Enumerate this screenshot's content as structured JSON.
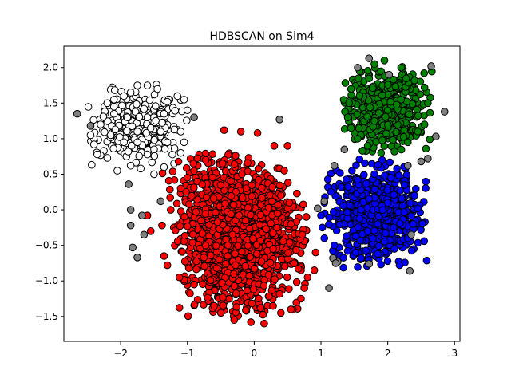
{
  "chart_data": {
    "type": "scatter",
    "title": "HDBSCAN on Sim4",
    "xlabel": "",
    "ylabel": "",
    "xlim": [
      -2.85,
      3.08
    ],
    "ylim": [
      -1.85,
      2.3
    ],
    "x_ticks": [
      -2,
      -1,
      0,
      1,
      2,
      3
    ],
    "x_tick_labels": [
      "−2",
      "−1",
      "0",
      "1",
      "2",
      "3"
    ],
    "y_ticks": [
      -1.5,
      -1.0,
      -0.5,
      0.0,
      0.5,
      1.0,
      1.5,
      2.0
    ],
    "y_tick_labels": [
      "−1.5",
      "−1.0",
      "−0.5",
      "0.0",
      "0.5",
      "1.0",
      "1.5",
      "2.0"
    ],
    "grid": false,
    "legend": "none",
    "marker_edge_color": "#000000",
    "series": [
      {
        "color": "#ffffff",
        "cluster": {
          "center": [
            -1.75,
            1.18
          ],
          "spread": [
            0.32,
            0.25
          ],
          "count": 260
        },
        "points": [
          [
            -2.1,
            1.35
          ],
          [
            -2.3,
            1.2
          ],
          [
            -2.45,
            1.05
          ],
          [
            -2.4,
            0.92
          ],
          [
            -2.35,
            0.78
          ],
          [
            -2.2,
            0.73
          ],
          [
            -2.05,
            0.55
          ],
          [
            -1.85,
            0.62
          ],
          [
            -1.7,
            0.58
          ],
          [
            -1.5,
            0.5
          ],
          [
            -1.35,
            0.6
          ],
          [
            -1.2,
            0.65
          ],
          [
            -1.1,
            0.8
          ],
          [
            -1.05,
            0.95
          ],
          [
            -1.1,
            1.1
          ],
          [
            -1.0,
            1.4
          ],
          [
            -1.05,
            1.55
          ],
          [
            -1.15,
            1.6
          ],
          [
            -1.3,
            1.52
          ],
          [
            -1.45,
            1.7
          ],
          [
            -1.6,
            1.75
          ],
          [
            -1.75,
            1.75
          ],
          [
            -1.85,
            1.65
          ],
          [
            -1.95,
            1.6
          ],
          [
            -2.1,
            1.55
          ],
          [
            -2.2,
            1.5
          ],
          [
            -2.1,
            1.45
          ],
          [
            -1.65,
            1.42
          ],
          [
            -1.35,
            1.35
          ],
          [
            -1.6,
            1.3
          ],
          [
            -1.9,
            1.3
          ],
          [
            -1.75,
            1.1
          ],
          [
            -1.55,
            1.15
          ],
          [
            -1.4,
            1.1
          ],
          [
            -1.3,
            0.95
          ],
          [
            -1.5,
            0.85
          ],
          [
            -1.75,
            0.95
          ],
          [
            -1.95,
            0.95
          ],
          [
            -2.15,
            1.05
          ],
          [
            -1.6,
            0.78
          ]
        ]
      },
      {
        "color": "#ff0000",
        "cluster": {
          "center": [
            -0.2,
            -0.35
          ],
          "spread": [
            0.42,
            0.48
          ],
          "count": 1600
        },
        "points": [
          [
            -0.45,
            1.12
          ],
          [
            -0.2,
            1.1
          ],
          [
            0.05,
            1.08
          ],
          [
            0.3,
            0.9
          ],
          [
            0.38,
            0.58
          ],
          [
            -1.1,
            0.3
          ],
          [
            -1.25,
            0.0
          ],
          [
            -1.38,
            -0.22
          ],
          [
            -1.55,
            -0.3
          ],
          [
            -1.6,
            -0.08
          ],
          [
            -1.35,
            -0.65
          ],
          [
            -1.3,
            -0.78
          ],
          [
            -1.12,
            -0.95
          ],
          [
            -0.9,
            -1.05
          ],
          [
            -0.6,
            -1.35
          ],
          [
            -0.5,
            -1.45
          ],
          [
            -0.3,
            -1.55
          ],
          [
            -0.05,
            -1.58
          ],
          [
            0.15,
            -1.6
          ],
          [
            0.4,
            -1.45
          ],
          [
            0.55,
            -1.4
          ],
          [
            0.7,
            -1.25
          ],
          [
            0.75,
            -1.1
          ],
          [
            0.8,
            -0.95
          ],
          [
            0.9,
            -0.85
          ],
          [
            0.92,
            -0.6
          ],
          [
            0.72,
            -0.35
          ],
          [
            0.55,
            -0.2
          ],
          [
            0.35,
            -0.05
          ],
          [
            0.4,
            0.2
          ],
          [
            0.45,
            0.55
          ],
          [
            0.5,
            0.9
          ]
        ]
      },
      {
        "color": "#0000ff",
        "cluster": {
          "center": [
            1.82,
            -0.05
          ],
          "spread": [
            0.32,
            0.32
          ],
          "count": 700
        },
        "points": [
          [
            1.3,
            0.32
          ],
          [
            1.55,
            0.42
          ],
          [
            1.8,
            0.5
          ],
          [
            2.05,
            0.45
          ],
          [
            2.25,
            0.35
          ],
          [
            2.4,
            0.2
          ],
          [
            2.45,
            0.02
          ],
          [
            2.38,
            -0.2
          ],
          [
            2.3,
            -0.4
          ],
          [
            2.1,
            -0.55
          ],
          [
            1.85,
            -0.62
          ],
          [
            1.6,
            -0.68
          ],
          [
            1.4,
            -0.58
          ],
          [
            1.2,
            -0.5
          ],
          [
            1.05,
            -0.4
          ],
          [
            1.02,
            -0.25
          ],
          [
            1.0,
            -0.08
          ],
          [
            1.05,
            0.1
          ],
          [
            1.15,
            0.25
          ],
          [
            1.6,
            0.0
          ],
          [
            2.0,
            0.1
          ],
          [
            1.7,
            -0.3
          ]
        ]
      },
      {
        "color": "#008000",
        "cluster": {
          "center": [
            2.0,
            1.42
          ],
          "spread": [
            0.28,
            0.25
          ],
          "count": 500
        },
        "points": [
          [
            1.58,
            1.95
          ],
          [
            1.8,
            2.05
          ],
          [
            1.95,
            2.1
          ],
          [
            2.2,
            2.0
          ],
          [
            2.4,
            1.82
          ],
          [
            2.55,
            1.72
          ],
          [
            2.6,
            1.5
          ],
          [
            2.55,
            1.2
          ],
          [
            2.45,
            1.1
          ],
          [
            2.3,
            0.95
          ],
          [
            2.1,
            0.82
          ],
          [
            1.9,
            0.8
          ],
          [
            1.7,
            0.9
          ],
          [
            1.55,
            1.0
          ],
          [
            1.45,
            1.15
          ],
          [
            1.4,
            1.3
          ],
          [
            1.42,
            1.5
          ],
          [
            1.45,
            1.7
          ],
          [
            2.0,
            1.4
          ],
          [
            2.2,
            1.55
          ],
          [
            1.8,
            1.25
          ]
        ]
      },
      {
        "color": "#808080",
        "cluster": {
          "center": [
            0,
            0
          ],
          "spread": [
            0,
            0
          ],
          "count": 0
        },
        "points": [
          [
            -2.65,
            1.35
          ],
          [
            -2.45,
            1.18
          ],
          [
            -1.88,
            0.36
          ],
          [
            -0.9,
            1.3
          ],
          [
            0.38,
            1.27
          ],
          [
            -1.85,
            0.0
          ],
          [
            -1.85,
            -0.22
          ],
          [
            -1.82,
            -0.53
          ],
          [
            -1.75,
            -0.67
          ],
          [
            -1.68,
            -0.08
          ],
          [
            -1.65,
            -0.35
          ],
          [
            -1.4,
            0.12
          ],
          [
            1.25,
            -0.73
          ],
          [
            1.12,
            -1.1
          ],
          [
            1.18,
            -0.68
          ],
          [
            1.22,
            -0.75
          ],
          [
            0.95,
            0.02
          ],
          [
            1.05,
            0.12
          ],
          [
            1.2,
            0.62
          ],
          [
            1.35,
            0.85
          ],
          [
            1.55,
            2.0
          ],
          [
            1.72,
            2.13
          ],
          [
            2.02,
            1.9
          ],
          [
            2.65,
            2.02
          ],
          [
            2.85,
            1.38
          ],
          [
            2.72,
            1.03
          ],
          [
            2.6,
            0.72
          ],
          [
            2.3,
            0.62
          ],
          [
            2.35,
            -0.35
          ],
          [
            2.33,
            -0.86
          ],
          [
            1.72,
            -0.76
          ],
          [
            2.5,
            0.68
          ]
        ]
      }
    ]
  }
}
